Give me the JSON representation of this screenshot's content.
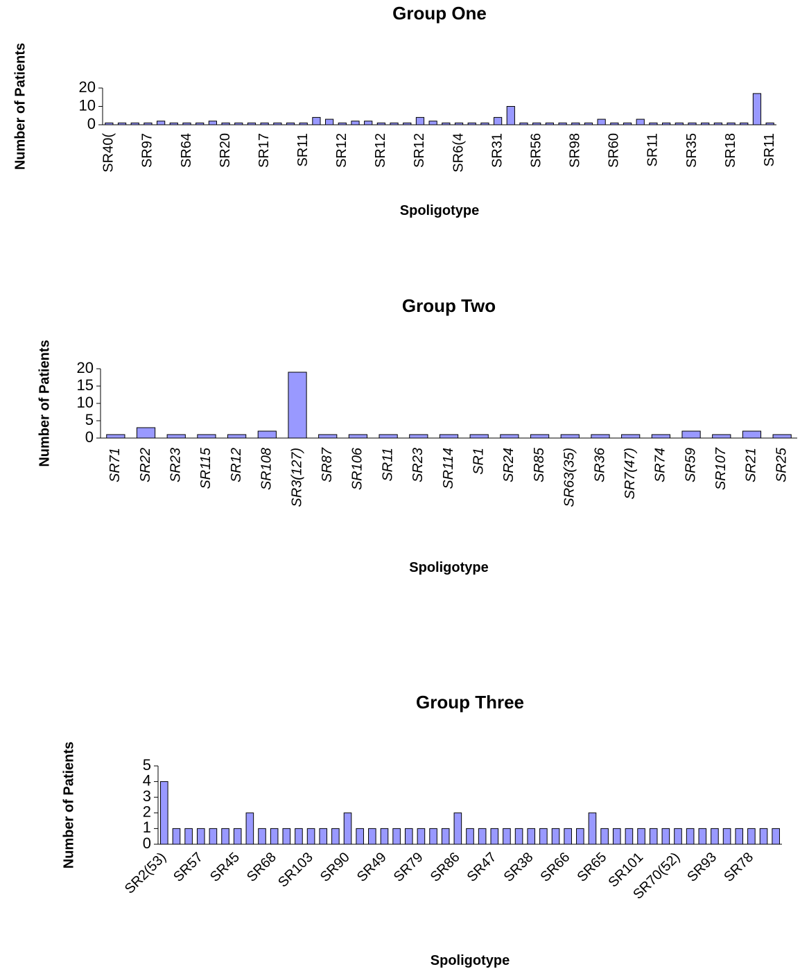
{
  "chart_data": [
    {
      "type": "bar",
      "title": "Group One",
      "x_label": "Spoligotype",
      "y_label": "Number of Patients",
      "categories": [
        "SR40(",
        null,
        null,
        "SR97",
        null,
        null,
        "SR64",
        null,
        null,
        "SR20",
        null,
        null,
        "SR17",
        null,
        null,
        "SR11",
        null,
        null,
        "SR12",
        null,
        null,
        "SR12",
        null,
        null,
        "SR12",
        null,
        null,
        "SR6(4",
        null,
        null,
        "SR31",
        null,
        null,
        "SR56",
        null,
        null,
        "SR98",
        null,
        null,
        "SR60",
        null,
        null,
        "SR11",
        null,
        null,
        "SR35",
        null,
        null,
        "SR18",
        null,
        null,
        "SR11"
      ],
      "values": [
        1,
        1,
        1,
        1,
        2,
        1,
        1,
        1,
        2,
        1,
        1,
        1,
        1,
        1,
        1,
        1,
        4,
        3,
        1,
        2,
        2,
        1,
        1,
        1,
        4,
        2,
        1,
        1,
        1,
        1,
        4,
        10,
        1,
        1,
        1,
        1,
        1,
        1,
        3,
        1,
        1,
        3,
        1,
        1,
        1,
        1,
        1,
        1,
        1,
        1,
        17,
        1
      ],
      "color": "#9999ff",
      "ylim": [
        0,
        20
      ],
      "yticks": [
        0,
        10,
        20
      ]
    },
    {
      "type": "bar",
      "title": "Group Two",
      "x_label": "Spoligotype",
      "y_label": "Number of Patients",
      "categories": [
        "SR71",
        "SR22",
        "SR23",
        "SR115",
        "SR12",
        "SR108",
        "SR3(127)",
        "SR87",
        "SR106",
        "SR11",
        "SR23",
        "SR114",
        "SR1",
        "SR24",
        "SR85",
        "SR63(35)",
        "SR36",
        "SR7(47)",
        "SR74",
        "SR59",
        "SR107",
        "SR21",
        "SR25"
      ],
      "values": [
        1,
        3,
        1,
        1,
        1,
        2,
        19,
        1,
        1,
        1,
        1,
        1,
        1,
        1,
        1,
        1,
        1,
        1,
        1,
        2,
        1,
        2,
        1
      ],
      "color": "#9999ff",
      "ylim": [
        0,
        20
      ],
      "yticks": [
        0,
        5,
        10,
        15,
        20
      ]
    },
    {
      "type": "bar",
      "title": "Group Three",
      "x_label": "Spoligotype",
      "y_label": "Number of Patients",
      "categories": [
        "SR2(53)",
        null,
        null,
        "SR57",
        null,
        null,
        "SR45",
        null,
        null,
        "SR68",
        null,
        null,
        "SR103",
        null,
        null,
        "SR90",
        null,
        null,
        "SR49",
        null,
        null,
        "SR79",
        null,
        null,
        "SR86",
        null,
        null,
        "SR47",
        null,
        null,
        "SR38",
        null,
        null,
        "SR66",
        null,
        null,
        "SR65",
        null,
        null,
        "SR101",
        null,
        null,
        "SR70(52)",
        null,
        null,
        "SR93",
        null,
        null,
        "SR78",
        null,
        null
      ],
      "values": [
        4,
        1,
        1,
        1,
        1,
        1,
        1,
        2,
        1,
        1,
        1,
        1,
        1,
        1,
        1,
        2,
        1,
        1,
        1,
        1,
        1,
        1,
        1,
        1,
        2,
        1,
        1,
        1,
        1,
        1,
        1,
        1,
        1,
        1,
        1,
        2,
        1,
        1,
        1,
        1,
        1,
        1,
        1,
        1,
        1,
        1,
        1,
        1,
        1,
        1,
        1
      ],
      "color": "#9999ff",
      "ylim": [
        0,
        5
      ],
      "yticks": [
        0,
        1,
        2,
        3,
        4,
        5
      ]
    }
  ]
}
